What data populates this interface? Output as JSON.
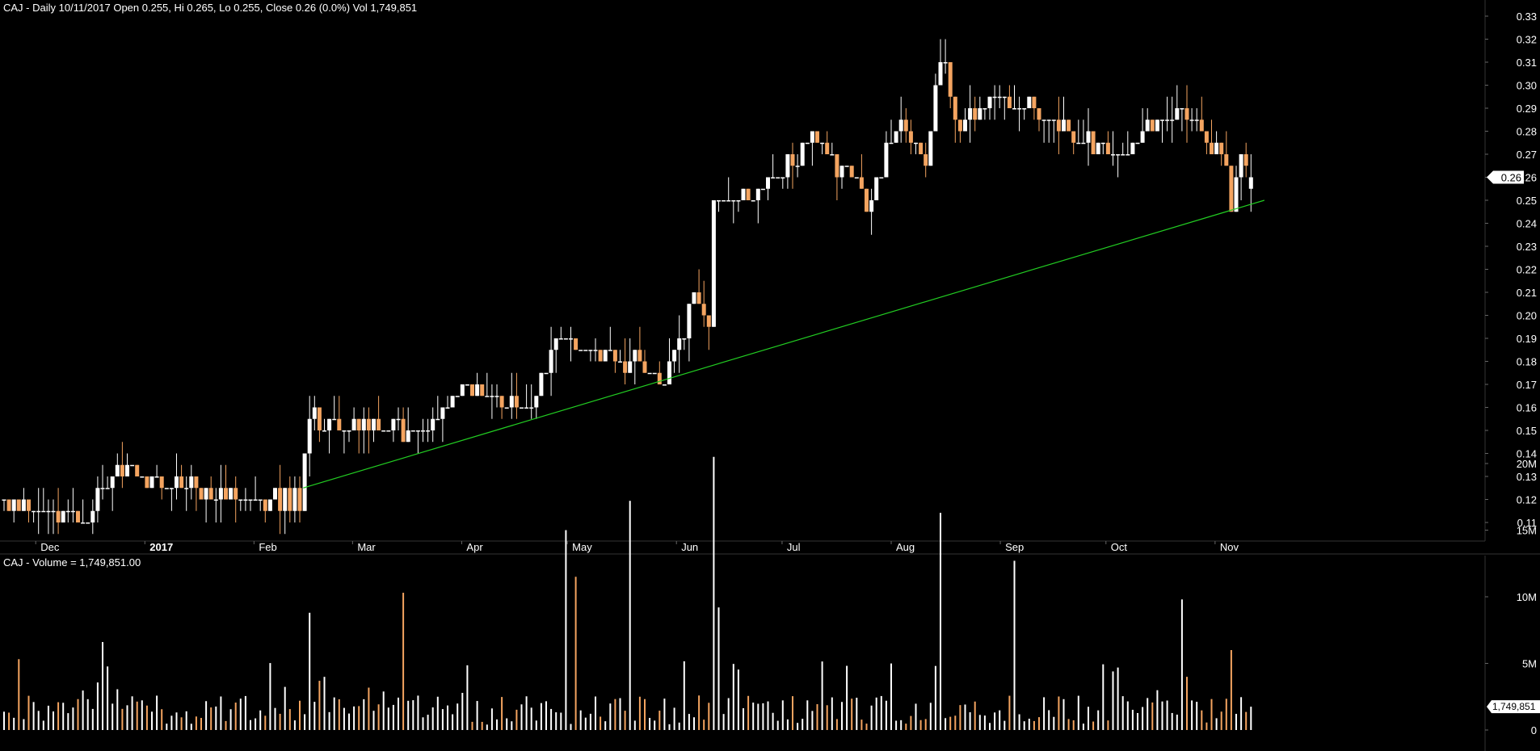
{
  "colors": {
    "background": "#000000",
    "up": "#ffffff",
    "down": "#f4a460",
    "trendline": "#22cc22",
    "axis_text": "#ffffff",
    "divider": "#333333",
    "tag_bg": "#ffffff",
    "tag_text": "#000000"
  },
  "chart_data": [
    {
      "type": "candlestick",
      "title": "CAJ - Daily 10/11/2017 Open 0.255, Hi 0.265, Lo 0.255, Close 0.26 (0.0%) Vol 1,749,851",
      "ylim": [
        0.105,
        0.335
      ],
      "yticks": [
        "0.11",
        "0.12",
        "0.13",
        "0.14",
        "0.15",
        "0.16",
        "0.17",
        "0.18",
        "0.19",
        "0.20",
        "0.21",
        "0.22",
        "0.23",
        "0.24",
        "0.25",
        "0.26",
        "0.27",
        "0.28",
        "0.29",
        "0.30",
        "0.31",
        "0.32",
        "0.33"
      ],
      "month_labels": [
        "Dec",
        "2017",
        "Feb",
        "Mar",
        "Apr",
        "May",
        "Jun",
        "Jul",
        "Aug",
        "Sep",
        "Oct",
        "Nov"
      ],
      "last_price_tag": "0.26",
      "trendline": {
        "start": [
          "2017-02-15",
          0.125
        ],
        "end": [
          "2017-11-15",
          0.25
        ]
      },
      "series_desc": "daily OHLC, ~237 sessions from late Nov 2016 to 10 Nov 2017; approximated from the picture",
      "key_points": [
        [
          "2016-11-22",
          0.12
        ],
        [
          "2016-12-15",
          0.11
        ],
        [
          "2016-12-23",
          0.135
        ],
        [
          "2017-01-25",
          0.12
        ],
        [
          "2017-02-14",
          0.12
        ],
        [
          "2017-02-16",
          0.155
        ],
        [
          "2017-03-20",
          0.15
        ],
        [
          "2017-04-03",
          0.17
        ],
        [
          "2017-04-20",
          0.155
        ],
        [
          "2017-04-27",
          0.19
        ],
        [
          "2017-05-20",
          0.18
        ],
        [
          "2017-05-29",
          0.17
        ],
        [
          "2017-06-05",
          0.21
        ],
        [
          "2017-06-09",
          0.195
        ],
        [
          "2017-06-12",
          0.25
        ],
        [
          "2017-06-30",
          0.26
        ],
        [
          "2017-07-10",
          0.28
        ],
        [
          "2017-07-25",
          0.25
        ],
        [
          "2017-08-03",
          0.285
        ],
        [
          "2017-08-10",
          0.27
        ],
        [
          "2017-08-16",
          0.315
        ],
        [
          "2017-08-18",
          0.28
        ],
        [
          "2017-08-30",
          0.295
        ],
        [
          "2017-09-15",
          0.285
        ],
        [
          "2017-10-03",
          0.27
        ],
        [
          "2017-10-20",
          0.29
        ],
        [
          "2017-11-01",
          0.275
        ],
        [
          "2017-11-06",
          0.245
        ],
        [
          "2017-11-08",
          0.27
        ],
        [
          "2017-11-10",
          0.26
        ]
      ],
      "last_bar": {
        "date": "10/11/2017",
        "open": 0.255,
        "high": 0.265,
        "low": 0.255,
        "close": 0.26
      }
    },
    {
      "type": "bar",
      "title": "CAJ - Volume = 1,749,851.00",
      "ylim": [
        0,
        21000000
      ],
      "yticks": [
        "20M",
        "15M",
        "10M",
        "5M",
        "0"
      ],
      "last_volume_tag": "1,749,851",
      "series_desc": "daily volume bars, mostly under 3M with spikes",
      "spikes": [
        [
          "2016-12-20",
          6600000
        ],
        [
          "2017-02-16",
          8800000
        ],
        [
          "2017-03-15",
          10300000
        ],
        [
          "2017-05-01",
          15000000
        ],
        [
          "2017-05-03",
          11500000
        ],
        [
          "2017-05-18",
          17200000
        ],
        [
          "2017-06-12",
          20500000
        ],
        [
          "2017-06-13",
          9200000
        ],
        [
          "2017-08-15",
          16300000
        ],
        [
          "2017-09-05",
          12700000
        ],
        [
          "2017-10-23",
          9800000
        ],
        [
          "2017-11-06",
          6000000
        ]
      ]
    }
  ]
}
